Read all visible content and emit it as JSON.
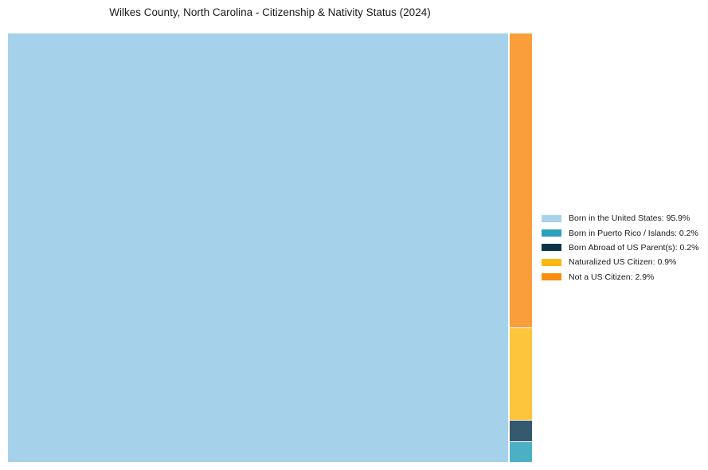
{
  "title": "Wilkes County, North Carolina - Citizenship & Nativity Status (2024)",
  "colors": {
    "background": "#ffffff",
    "title_text": "#1a1a1a",
    "legend_text": "#1a1a1a"
  },
  "chart_data": {
    "type": "treemap",
    "title": "Wilkes County, North Carolina - Citizenship & Nativity Status (2024)",
    "unit": "%",
    "legend_position": "right-center",
    "layout": "single large block left, remaining categories stacked in narrow right strip, largest at top",
    "series": [
      {
        "label": "Born in the United States",
        "value": 95.9,
        "display": "Born in the United States: 95.9%",
        "legend_color": "#a6d3ea",
        "block_color": "#a5d2ea"
      },
      {
        "label": "Born in Puerto Rico / Islands",
        "value": 0.2,
        "display": "Born in Puerto Rico / Islands: 0.2%",
        "legend_color": "#2aa0ba",
        "block_color": "#4cb0c5"
      },
      {
        "label": "Born Abroad of US Parent(s)",
        "value": 0.2,
        "display": "Born Abroad of US Parent(s): 0.2%",
        "legend_color": "#0d3349",
        "block_color": "#35596e"
      },
      {
        "label": "Naturalized US Citizen",
        "value": 0.9,
        "display": "Naturalized US Citizen: 0.9%",
        "legend_color": "#fdb713",
        "block_color": "#fdc53c"
      },
      {
        "label": "Not a US Citizen",
        "value": 2.9,
        "display": "Not a US Citizen: 2.9%",
        "legend_color": "#f88d0f",
        "block_color": "#fa9e3c"
      }
    ]
  }
}
